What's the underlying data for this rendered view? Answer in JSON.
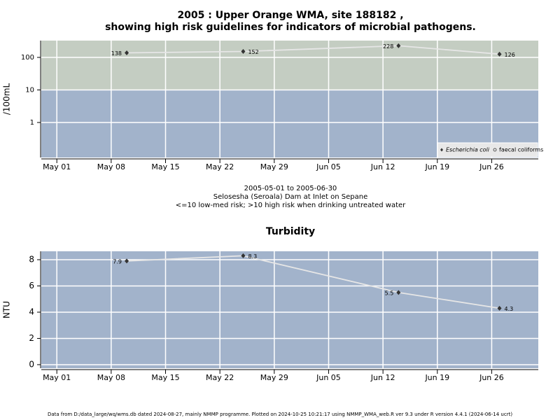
{
  "chart_data": [
    {
      "type": "line",
      "title": "2005 : Upper Orange WMA, site 188182 ,",
      "subtitle": "showing high risk guidelines for indicators of microbial pathogens.",
      "ylabel": "/100mL",
      "notes": [
        "2005-05-01 to 2005-06-30",
        "Selosesha (Seroala) Dam at Inlet on Sepane",
        "<=10 low-med risk; >10 high risk when drinking untreated water"
      ],
      "x": [
        "05-10",
        "05-25",
        "06-14",
        "06-27"
      ],
      "series": [
        {
          "name": "Escherichia coli",
          "color": "#333333",
          "values": [
            138,
            152,
            228,
            126
          ]
        },
        {
          "name": "faecal coliforms",
          "color": "#333333",
          "values": [
            null,
            null,
            null,
            null
          ]
        }
      ],
      "xlim": [
        "04-29",
        "07-02"
      ],
      "xticks": [
        {
          "value": "05-01",
          "label": "May 01"
        },
        {
          "value": "05-08",
          "label": "May 08"
        },
        {
          "value": "05-15",
          "label": "May 15"
        },
        {
          "value": "05-22",
          "label": "May 22"
        },
        {
          "value": "05-29",
          "label": "May 29"
        },
        {
          "value": "06-05",
          "label": "Jun 05"
        },
        {
          "value": "06-12",
          "label": "Jun 12"
        },
        {
          "value": "06-19",
          "label": "Jun 19"
        },
        {
          "value": "06-26",
          "label": "Jun 26"
        }
      ],
      "ylim": [
        0.084,
        328
      ],
      "yticks": [
        1,
        10,
        100
      ],
      "log_scale": true,
      "grid": true,
      "background": "#a2b3cb",
      "threshold": 10,
      "above_color": "#c4cdc2",
      "legend": "bottom-right"
    },
    {
      "type": "line",
      "title": "Turbidity",
      "ylabel": "NTU",
      "x": [
        "05-10",
        "05-25",
        "06-14",
        "06-27"
      ],
      "series": [
        {
          "name": "Turbidity",
          "color": "#333333",
          "values": [
            7.9,
            8.3,
            5.5,
            4.3
          ]
        }
      ],
      "xlim": [
        "04-29",
        "07-02"
      ],
      "xticks": [
        {
          "value": "05-01",
          "label": "May 01"
        },
        {
          "value": "05-08",
          "label": "May 08"
        },
        {
          "value": "05-15",
          "label": "May 15"
        },
        {
          "value": "05-22",
          "label": "May 22"
        },
        {
          "value": "05-29",
          "label": "May 29"
        },
        {
          "value": "06-05",
          "label": "Jun 05"
        },
        {
          "value": "06-12",
          "label": "Jun 12"
        },
        {
          "value": "06-19",
          "label": "Jun 19"
        },
        {
          "value": "06-26",
          "label": "Jun 26"
        }
      ],
      "ylim": [
        -0.27,
        8.64
      ],
      "yticks": [
        0,
        2,
        4,
        6,
        8
      ],
      "log_scale": false,
      "grid": true,
      "background": "#a2b3cb"
    }
  ],
  "footer": "Data from D:/data_large/wq/wms.db dated 2024-08-27, mainly NMMP programme. Plotted on 2024-10-25 10:21:17 using NMMP_WMA_web.R ver 9.3 under R version 4.4.1 (2024-06-14 ucrt)"
}
